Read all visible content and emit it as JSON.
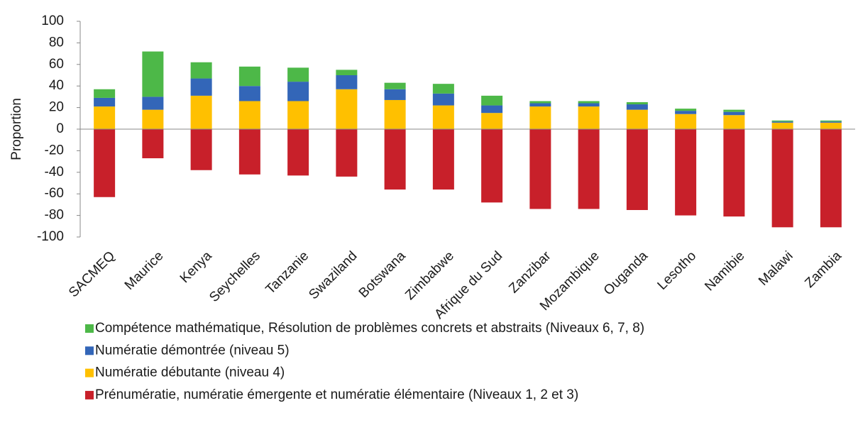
{
  "chart_data": {
    "type": "bar",
    "stacked": true,
    "ylabel": "Proportion",
    "categories": [
      "SACMEQ",
      "Maurice",
      "Kenya",
      "Seychelles",
      "Tanzanie",
      "Swaziland",
      "Botswana",
      "Zimbabwe",
      "Afrique du Sud",
      "Zanzibar",
      "Mozambique",
      "Ouganda",
      "Lesotho",
      "Namibie",
      "Malawi",
      "Zambia"
    ],
    "series": [
      {
        "name": "Compétence mathématique, Résolution de problèmes concrets et abstraits (Niveaux 6, 7, 8)",
        "color": "#4db848",
        "values": [
          8,
          42,
          15,
          18,
          13,
          5,
          6,
          9,
          9,
          2,
          2,
          2,
          2,
          2,
          1,
          1
        ]
      },
      {
        "name": "Numératie démontrée (niveau 5)",
        "color": "#3366b8",
        "values": [
          8,
          12,
          16,
          14,
          18,
          13,
          10,
          11,
          7,
          3,
          3,
          5,
          3,
          3,
          1,
          1
        ]
      },
      {
        "name": "Numératie débutante (niveau 4)",
        "color": "#ffc000",
        "values": [
          21,
          18,
          31,
          26,
          26,
          37,
          27,
          22,
          15,
          21,
          21,
          18,
          14,
          13,
          6,
          6
        ]
      },
      {
        "name": "Prénumératie, numératie émergente et numératie élémentaire (Niveaux 1, 2 et 3)",
        "color": "#c8202a",
        "values": [
          -63,
          -27,
          -38,
          -42,
          -43,
          -44,
          -56,
          -56,
          -68,
          -74,
          -74,
          -75,
          -80,
          -81,
          -91,
          -91
        ]
      }
    ],
    "ylim": [
      -100,
      100
    ],
    "yticks": [
      -100,
      -80,
      -60,
      -40,
      -20,
      0,
      20,
      40,
      60,
      80,
      100
    ],
    "grid": false
  }
}
